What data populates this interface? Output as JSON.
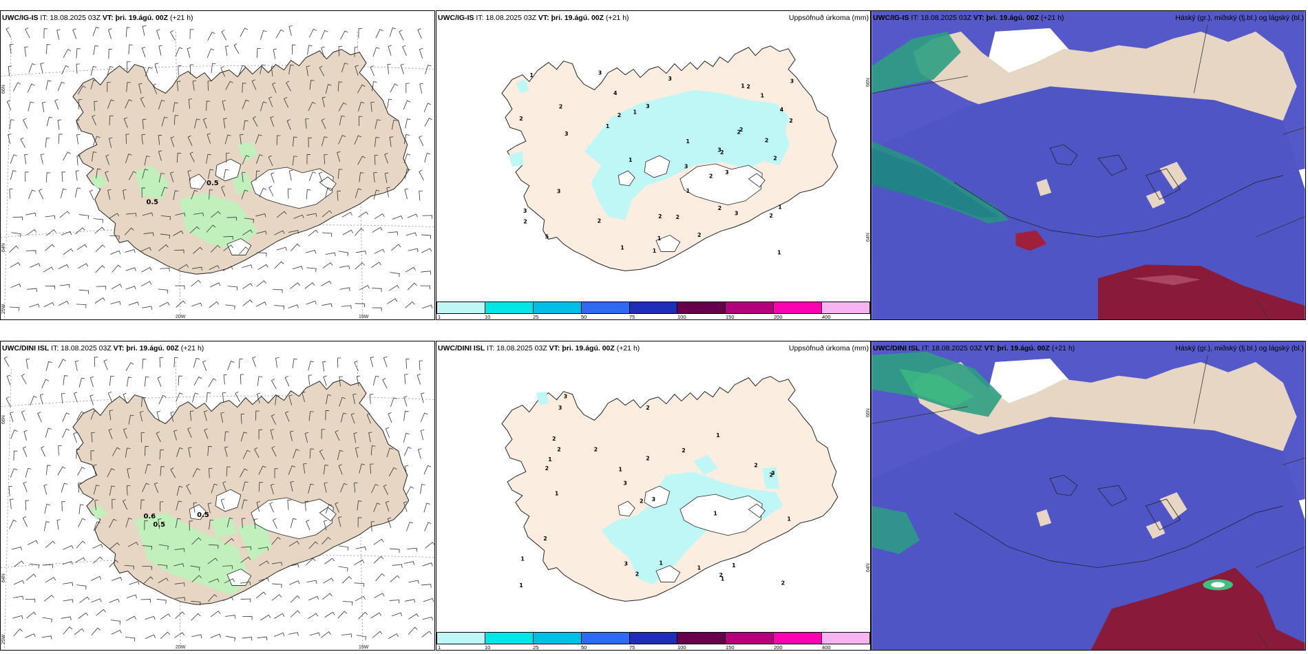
{
  "rows": [
    {
      "model": "UWC/IG-IS",
      "it": "IT: 18.08.2025 03Z",
      "vt_label": "VT:",
      "vt_value": "þri. 19.ágú. 00Z",
      "lead": "(+21 h)",
      "wind_contours": [
        "0.5",
        "0.5"
      ],
      "precip_numbers": [
        "2",
        "1",
        "1",
        "3",
        "1",
        "2",
        "2",
        "1",
        "3",
        "2",
        "3",
        "1",
        "3",
        "3",
        "2",
        "1",
        "2",
        "4",
        "2",
        "5",
        "4",
        "3",
        "2",
        "2",
        "3",
        "1",
        "3",
        "2",
        "3",
        "2",
        "1",
        "2",
        "2",
        "1",
        "3",
        "2",
        "2",
        "1",
        "1",
        "2",
        "1",
        "3",
        "2",
        "2",
        "1"
      ],
      "lat_labels": [
        "66N",
        "64N"
      ],
      "lon_labels": [
        "20W",
        "15W"
      ],
      "left_lon_label": "25W",
      "mid_lat_labels": [
        "66N",
        "64N"
      ]
    },
    {
      "model": "UWC/DINI ISL",
      "it": "IT: 18.08.2025 03Z",
      "vt_label": "VT:",
      "vt_value": "þri. 19.ágú. 00Z",
      "lead": "(+21 h)",
      "wind_contours": [
        "0.6",
        "0.5",
        "0.5"
      ],
      "precip_numbers": [
        "1",
        "2",
        "1",
        "1",
        "2",
        "1",
        "2",
        "2",
        "1",
        "1",
        "2",
        "3",
        "2",
        "3",
        "2",
        "1",
        "3",
        "2",
        "2",
        "1",
        "3",
        "3",
        "2",
        "1",
        "2",
        "3",
        "1",
        "2",
        "2",
        "1",
        "1",
        "2"
      ],
      "lat_labels": [
        "66N",
        "64N"
      ],
      "lon_labels": [
        "20W",
        "15W"
      ],
      "left_lon_label": "25W",
      "mid_lat_labels": [
        "66N",
        "64N"
      ]
    }
  ],
  "precip_title": "Uppsöfnuð úrkoma (mm)",
  "cloud_title": "Háský (gr.), miðský (fj.bl.) og lágský (bl.)",
  "colorbar": {
    "ticks": [
      "1",
      "10",
      "25",
      "50",
      "75",
      "100",
      "150",
      "200",
      "400"
    ],
    "colors": [
      "#bff7f7",
      "#00e6e6",
      "#00bfe6",
      "#2e6bf0",
      "#1f2db8",
      "#66004d",
      "#b3007a",
      "#ff00b3",
      "#f7b3f2"
    ]
  },
  "colors": {
    "land": "#e6d6c3",
    "land_light": "#fbeee0",
    "precip_light": "#bff7f7",
    "green_precip": "#c8f7c8",
    "cloud_high": "#4a4fbf",
    "cloud_mid": "#1f8a7a",
    "cloud_low_red": "#8a1a3a"
  }
}
